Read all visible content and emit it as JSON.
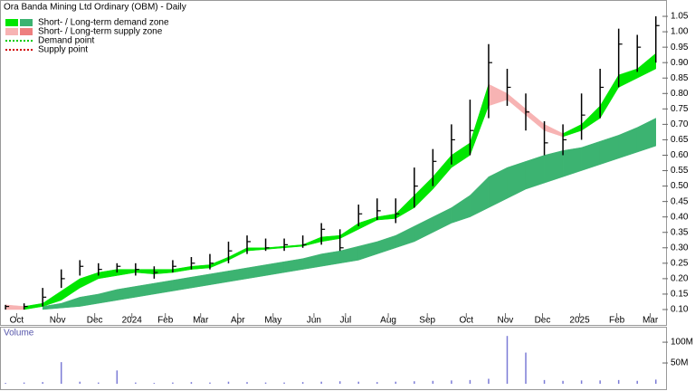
{
  "chart_data": {
    "type": "ohlc",
    "title": "Ora Banda Mining Ltd Ordinary (OBM) - Daily",
    "legend": [
      {
        "name": "Short- / Long-term demand zone",
        "colors": [
          "#00e600",
          "#3cb371"
        ],
        "style": "swatch"
      },
      {
        "name": "Short- / Long-term supply zone",
        "colors": [
          "#f7b3b3",
          "#ee7f7f"
        ],
        "style": "swatch"
      },
      {
        "name": "Demand point",
        "colors": [
          "#00cc00"
        ],
        "style": "dots"
      },
      {
        "name": "Supply point",
        "colors": [
          "#d00000"
        ],
        "style": "dots"
      }
    ],
    "xticks": [
      {
        "value": 0.6,
        "label": "Oct"
      },
      {
        "value": 2.8,
        "label": "Nov"
      },
      {
        "value": 4.8,
        "label": "Dec"
      },
      {
        "value": 6.8,
        "label": "2024"
      },
      {
        "value": 8.6,
        "label": "Feb"
      },
      {
        "value": 10.5,
        "label": "Mar"
      },
      {
        "value": 12.5,
        "label": "Apr"
      },
      {
        "value": 14.4,
        "label": "May"
      },
      {
        "value": 16.6,
        "label": "Jun"
      },
      {
        "value": 18.3,
        "label": "Jul"
      },
      {
        "value": 20.6,
        "label": "Aug"
      },
      {
        "value": 22.7,
        "label": "Sep"
      },
      {
        "value": 24.8,
        "label": "Oct"
      },
      {
        "value": 26.9,
        "label": "Nov"
      },
      {
        "value": 28.9,
        "label": "Dec"
      },
      {
        "value": 30.9,
        "label": "2025"
      },
      {
        "value": 32.9,
        "label": "Feb"
      },
      {
        "value": 34.7,
        "label": "Mar"
      }
    ],
    "xlim": [
      -0.2,
      35.5
    ],
    "ylim": [
      0.08,
      1.09
    ],
    "yticks": [
      {
        "value": 0.1,
        "label": "0.10"
      },
      0.15,
      {
        "value": 0.2,
        "label": "0.20"
      },
      0.25,
      {
        "value": 0.3,
        "label": "0.30"
      },
      0.35,
      {
        "value": 0.4,
        "label": "0.40"
      },
      0.45,
      {
        "value": 0.5,
        "label": "0.50"
      },
      0.55,
      {
        "value": 0.6,
        "label": "0.60"
      },
      0.65,
      {
        "value": 0.7,
        "label": "0.70"
      },
      0.75,
      {
        "value": 0.8,
        "label": "0.80"
      },
      0.85,
      {
        "value": 0.9,
        "label": "0.90"
      },
      0.95,
      {
        "value": 1.0,
        "label": "1.00"
      },
      1.05
    ],
    "price": {
      "color": "#000000",
      "high": [
        0.115,
        0.12,
        0.17,
        0.23,
        0.26,
        0.25,
        0.25,
        0.25,
        0.24,
        0.26,
        0.27,
        0.28,
        0.32,
        0.34,
        0.33,
        0.33,
        0.34,
        0.38,
        0.36,
        0.44,
        0.46,
        0.46,
        0.56,
        0.62,
        0.7,
        0.78,
        0.96,
        0.88,
        0.8,
        0.71,
        0.7,
        0.8,
        0.88,
        1.01,
        0.99,
        1.05
      ],
      "low": [
        0.1,
        0.1,
        0.11,
        0.17,
        0.21,
        0.21,
        0.22,
        0.21,
        0.2,
        0.22,
        0.23,
        0.23,
        0.25,
        0.28,
        0.29,
        0.29,
        0.3,
        0.31,
        0.29,
        0.37,
        0.39,
        0.38,
        0.43,
        0.5,
        0.57,
        0.6,
        0.72,
        0.76,
        0.68,
        0.6,
        0.6,
        0.65,
        0.72,
        0.82,
        0.87,
        0.9
      ],
      "close": [
        0.11,
        0.11,
        0.14,
        0.2,
        0.24,
        0.23,
        0.24,
        0.23,
        0.22,
        0.24,
        0.25,
        0.25,
        0.29,
        0.32,
        0.3,
        0.31,
        0.31,
        0.36,
        0.3,
        0.41,
        0.42,
        0.41,
        0.5,
        0.58,
        0.65,
        0.68,
        0.9,
        0.82,
        0.74,
        0.64,
        0.65,
        0.73,
        0.82,
        0.96,
        0.95,
        1.02
      ]
    },
    "short_zone": {
      "upper": [
        0.115,
        0.11,
        0.12,
        0.16,
        0.2,
        0.22,
        0.23,
        0.23,
        0.23,
        0.23,
        0.24,
        0.245,
        0.27,
        0.3,
        0.3,
        0.305,
        0.31,
        0.335,
        0.34,
        0.38,
        0.4,
        0.41,
        0.47,
        0.53,
        0.6,
        0.64,
        0.83,
        0.8,
        0.75,
        0.7,
        0.67,
        0.7,
        0.76,
        0.86,
        0.88,
        0.93
      ],
      "lower": [
        0.1,
        0.1,
        0.11,
        0.13,
        0.17,
        0.2,
        0.21,
        0.22,
        0.215,
        0.22,
        0.23,
        0.235,
        0.26,
        0.29,
        0.295,
        0.3,
        0.305,
        0.32,
        0.33,
        0.36,
        0.39,
        0.395,
        0.43,
        0.49,
        0.56,
        0.6,
        0.76,
        0.78,
        0.73,
        0.68,
        0.66,
        0.68,
        0.72,
        0.82,
        0.85,
        0.88
      ]
    },
    "long_zone": {
      "upper": [
        null,
        null,
        0.11,
        0.12,
        0.14,
        0.15,
        0.165,
        0.175,
        0.185,
        0.195,
        0.205,
        0.215,
        0.225,
        0.235,
        0.245,
        0.255,
        0.265,
        0.28,
        0.29,
        0.305,
        0.32,
        0.34,
        0.37,
        0.4,
        0.43,
        0.47,
        0.53,
        0.56,
        0.58,
        0.6,
        0.615,
        0.625,
        0.645,
        0.665,
        0.69,
        0.72
      ],
      "lower": [
        null,
        null,
        0.1,
        0.105,
        0.11,
        0.12,
        0.13,
        0.14,
        0.15,
        0.16,
        0.17,
        0.18,
        0.19,
        0.2,
        0.21,
        0.22,
        0.23,
        0.24,
        0.25,
        0.26,
        0.28,
        0.3,
        0.32,
        0.35,
        0.38,
        0.4,
        0.43,
        0.46,
        0.49,
        0.51,
        0.53,
        0.55,
        0.57,
        0.59,
        0.61,
        0.63
      ]
    },
    "volume": {
      "name": "Volume",
      "color": "#7b7bd6",
      "ylim": [
        0,
        135000000
      ],
      "yticks": [
        {
          "value": 50000000,
          "label": "50M"
        },
        {
          "value": 100000000,
          "label": "100M"
        }
      ],
      "values": [
        2000000,
        3000000,
        4000000,
        52000000,
        5000000,
        3000000,
        32000000,
        3000000,
        2000000,
        3000000,
        4000000,
        3000000,
        5000000,
        4000000,
        3000000,
        3000000,
        4000000,
        5000000,
        6000000,
        5000000,
        4000000,
        5000000,
        6000000,
        7000000,
        8000000,
        9000000,
        12000000,
        115000000,
        75000000,
        9000000,
        7000000,
        8000000,
        8000000,
        9000000,
        7000000,
        10000000
      ]
    }
  }
}
